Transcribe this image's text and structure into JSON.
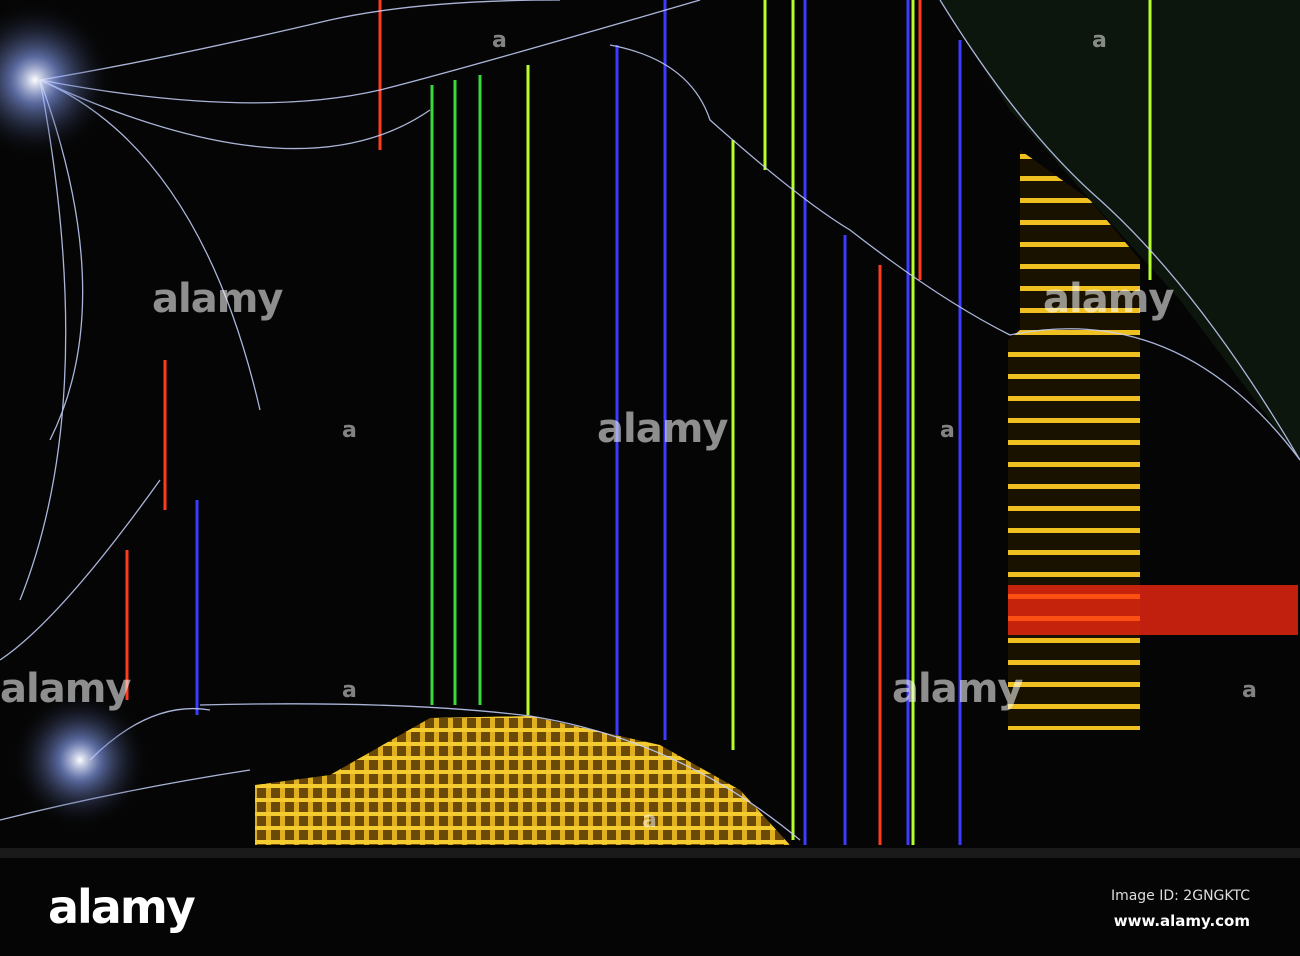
{
  "image": {
    "subject": "cracked-lcd-screen",
    "colors": {
      "background": "#000000",
      "green": "#39d93a",
      "lime": "#b6ff2a",
      "blue": "#3a3cff",
      "red": "#ff3b1e",
      "yellow": "#f2c21a",
      "crack": "#c8d4ff"
    }
  },
  "watermark": {
    "logo": "alamy",
    "symbol": "a"
  },
  "footer": {
    "logo": "alamy",
    "image_id": "Image ID: 2GNGKTC",
    "url": "www.alamy.com"
  }
}
